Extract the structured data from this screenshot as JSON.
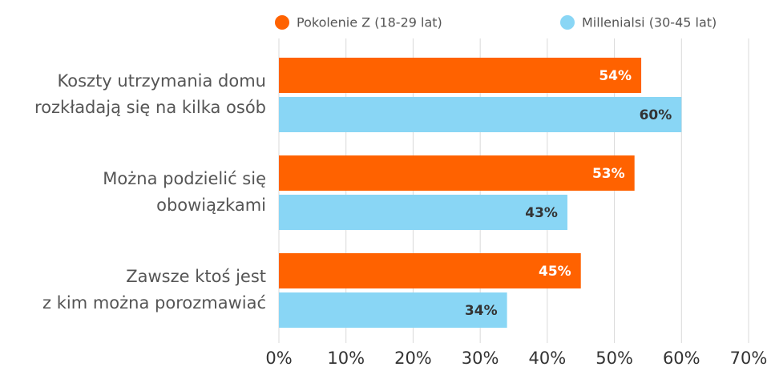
{
  "chart_data": {
    "type": "bar",
    "orientation": "horizontal",
    "categories": [
      [
        "Koszty utrzymania domu",
        "rozkładają się na kilka osób"
      ],
      [
        "Można podzielić się",
        "obowiązkami"
      ],
      [
        "Zawsze ktoś jest",
        "z kim można porozmawiać"
      ]
    ],
    "series": [
      {
        "name": "Pokolenie Z (18-29 lat)",
        "color": "#ff6200",
        "label_color": "#ffffff",
        "values": [
          54,
          53,
          45
        ],
        "value_labels": [
          "54%",
          "53%",
          "45%"
        ]
      },
      {
        "name": "Millenialsi (30-45 lat)",
        "color": "#89d6f5",
        "label_color": "#333333",
        "values": [
          60,
          43,
          34
        ],
        "value_labels": [
          "60%",
          "43%",
          "34%"
        ]
      }
    ],
    "xlim": [
      0,
      70
    ],
    "xticks": [
      {
        "value": 0,
        "label": "0%"
      },
      {
        "value": 10,
        "label": "10%"
      },
      {
        "value": 20,
        "label": "20%"
      },
      {
        "value": 30,
        "label": "30%"
      },
      {
        "value": 40,
        "label": "40%"
      },
      {
        "value": 50,
        "label": "50%"
      },
      {
        "value": 60,
        "label": "60%"
      },
      {
        "value": 70,
        "label": "70%"
      }
    ],
    "grid": true,
    "legend": "top"
  }
}
